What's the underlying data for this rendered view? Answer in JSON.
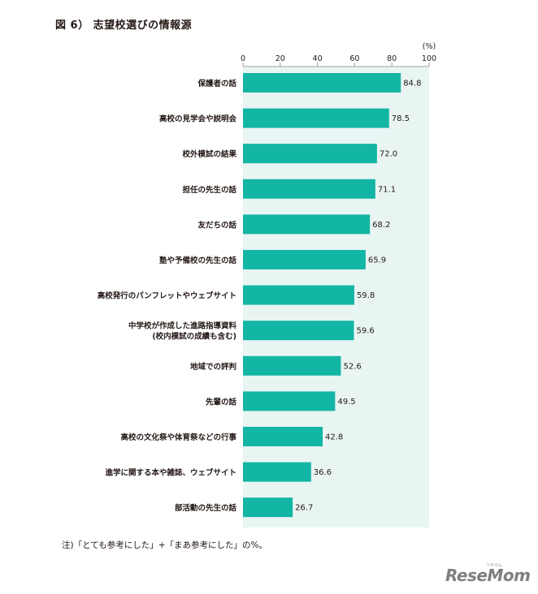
{
  "header": {
    "title": "図 6） 志望校選びの情報源"
  },
  "footnote": "注)「とても参考にした」+「まあ参考にした」の%。",
  "logo": {
    "text": "ReseMom",
    "sub": "リセマム"
  },
  "colors": {
    "bar": "#13b5a4",
    "plot_bg": "#e9f5f3",
    "text": "#231815"
  },
  "chart_data": {
    "type": "bar",
    "orientation": "horizontal",
    "unit_label": "(%)",
    "xlim": [
      0,
      100
    ],
    "ticks": [
      0,
      20,
      40,
      60,
      80,
      100
    ],
    "categories": [
      [
        "保護者の話"
      ],
      [
        "高校の見学会や説明会"
      ],
      [
        "校外模試の結果"
      ],
      [
        "担任の先生の話"
      ],
      [
        "友だちの話"
      ],
      [
        "塾や予備校の先生の話"
      ],
      [
        "高校発行のパンフレットやウェブサイト"
      ],
      [
        "中学校が作成した進路指導資料",
        "(校内模試の成績も含む)"
      ],
      [
        "地域での評判"
      ],
      [
        "先輩の話"
      ],
      [
        "高校の文化祭や体育祭などの行事"
      ],
      [
        "進学に関する本や雑誌、ウェブサイト"
      ],
      [
        "部活動の先生の話"
      ]
    ],
    "values": [
      84.8,
      78.5,
      72.0,
      71.1,
      68.2,
      65.9,
      59.8,
      59.6,
      52.6,
      49.5,
      42.8,
      36.6,
      26.7
    ],
    "value_labels": [
      "84.8",
      "78.5",
      "72.0",
      "71.1",
      "68.2",
      "65.9",
      "59.8",
      "59.6",
      "52.6",
      "49.5",
      "42.8",
      "36.6",
      "26.7"
    ],
    "grid": false,
    "legend": "none"
  }
}
